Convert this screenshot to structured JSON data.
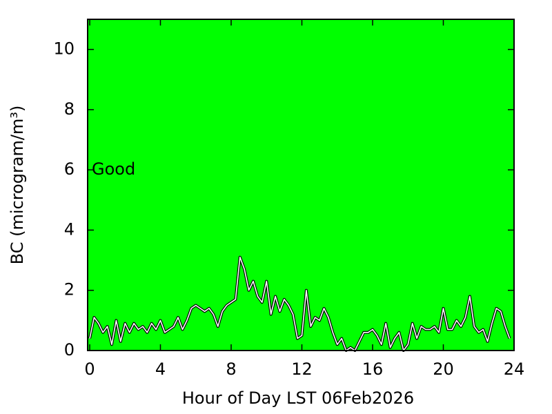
{
  "chart_data": {
    "type": "line",
    "xlabel": "Hour of Day LST 06Feb2026",
    "ylabel": "BC (microgram/m³)",
    "annotation": {
      "text": "Good",
      "x": 0,
      "y": 6
    },
    "background": "#00ff00",
    "xlim": [
      0,
      24
    ],
    "xticks": [
      0,
      4,
      8,
      12,
      16,
      20,
      24
    ],
    "ylim": [
      0,
      11
    ],
    "yticks": [
      0,
      2,
      4,
      6,
      8,
      10
    ],
    "x": [
      0,
      0.25,
      0.5,
      0.75,
      1,
      1.25,
      1.5,
      1.75,
      2,
      2.25,
      2.5,
      2.75,
      3,
      3.25,
      3.5,
      3.75,
      4,
      4.25,
      4.5,
      4.75,
      5,
      5.25,
      5.5,
      5.75,
      6,
      6.25,
      6.5,
      6.75,
      7,
      7.25,
      7.5,
      7.75,
      8,
      8.25,
      8.5,
      8.75,
      9,
      9.25,
      9.5,
      9.75,
      10,
      10.25,
      10.5,
      10.75,
      11,
      11.25,
      11.5,
      11.75,
      12,
      12.25,
      12.5,
      12.75,
      13,
      13.25,
      13.5,
      13.75,
      14,
      14.25,
      14.5,
      14.75,
      15,
      15.25,
      15.5,
      15.75,
      16,
      16.25,
      16.5,
      16.75,
      17,
      17.25,
      17.5,
      17.75,
      18,
      18.25,
      18.5,
      18.75,
      19,
      19.25,
      19.5,
      19.75,
      20,
      20.25,
      20.5,
      20.75,
      21,
      21.25,
      21.5,
      21.75,
      22,
      22.25,
      22.5,
      22.75,
      23,
      23.25,
      23.5,
      23.75
    ],
    "series": [
      {
        "color": "#ffffff",
        "values": [
          0.4,
          1.1,
          0.9,
          0.6,
          0.8,
          0.2,
          1.0,
          0.3,
          0.9,
          0.6,
          0.9,
          0.7,
          0.8,
          0.6,
          0.9,
          0.7,
          1.0,
          0.6,
          0.7,
          0.8,
          1.1,
          0.7,
          1.0,
          1.4,
          1.5,
          1.4,
          1.3,
          1.4,
          1.2,
          0.8,
          1.3,
          1.5,
          1.6,
          1.7,
          3.1,
          2.7,
          2.0,
          2.3,
          1.8,
          1.6,
          2.3,
          1.2,
          1.8,
          1.3,
          1.7,
          1.5,
          1.2,
          0.4,
          0.5,
          2.0,
          0.8,
          1.1,
          1.0,
          1.4,
          1.1,
          0.6,
          0.2,
          0.4,
          0.0,
          0.1,
          0.0,
          0.3,
          0.6,
          0.6,
          0.7,
          0.5,
          0.2,
          0.9,
          0.1,
          0.4,
          0.6,
          0.0,
          0.2,
          0.9,
          0.4,
          0.8,
          0.7,
          0.7,
          0.8,
          0.6,
          1.4,
          0.7,
          0.7,
          1.0,
          0.8,
          1.1,
          1.8,
          0.8,
          0.6,
          0.7,
          0.3,
          0.9,
          1.4,
          1.3,
          0.8,
          0.4
        ]
      }
    ]
  }
}
